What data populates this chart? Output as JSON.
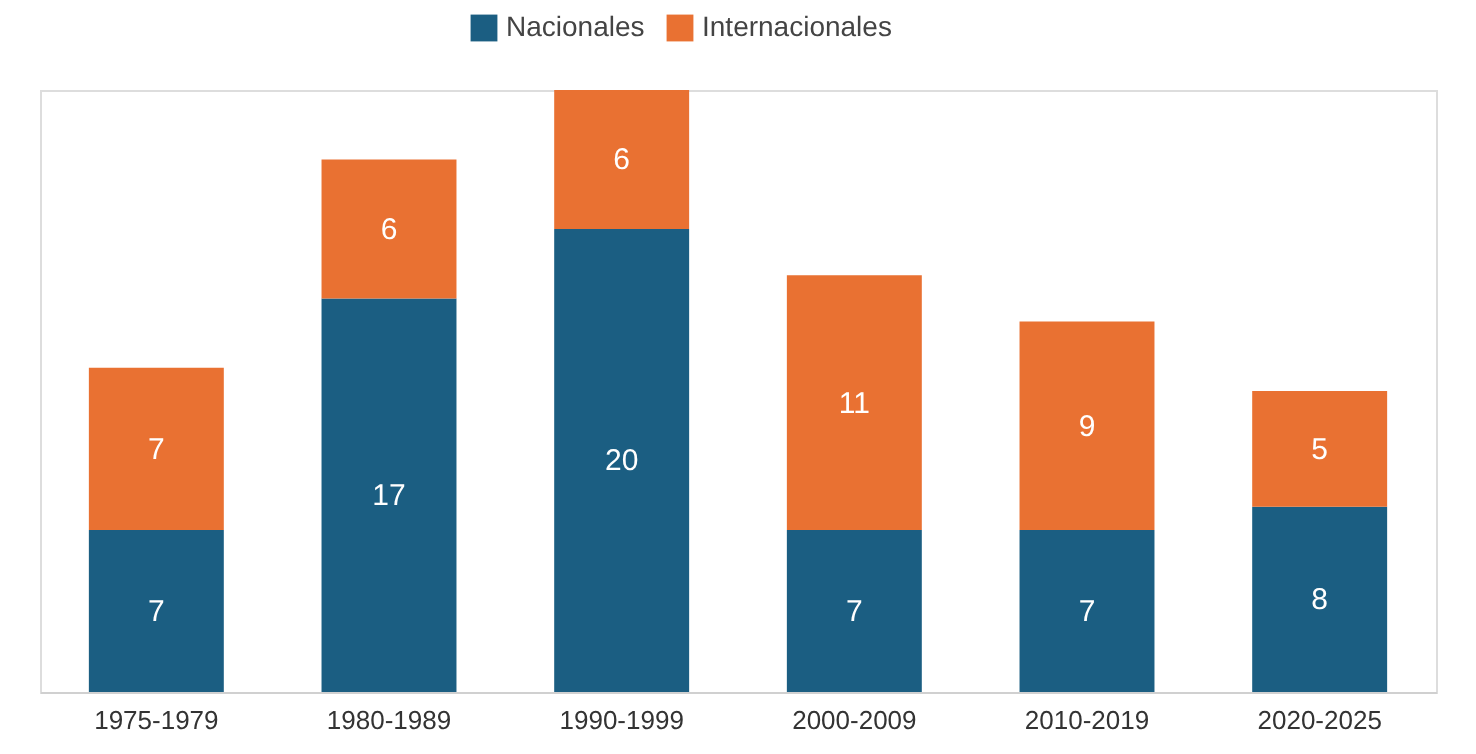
{
  "chart_data": {
    "type": "bar",
    "stacked": true,
    "tick_labels": "x",
    "legend": "top",
    "categories": [
      "1975-1979",
      "1980-1989",
      "1990-1999",
      "2000-2009",
      "2010-2019",
      "2020-2025"
    ],
    "series": [
      {
        "name": "Nacionales",
        "color": "#1b5e82",
        "values": [
          7,
          17,
          20,
          7,
          7,
          8
        ]
      },
      {
        "name": "Internacionales",
        "color": "#e97132",
        "values": [
          7,
          6,
          6,
          11,
          9,
          5
        ]
      }
    ],
    "data_labels": true
  }
}
